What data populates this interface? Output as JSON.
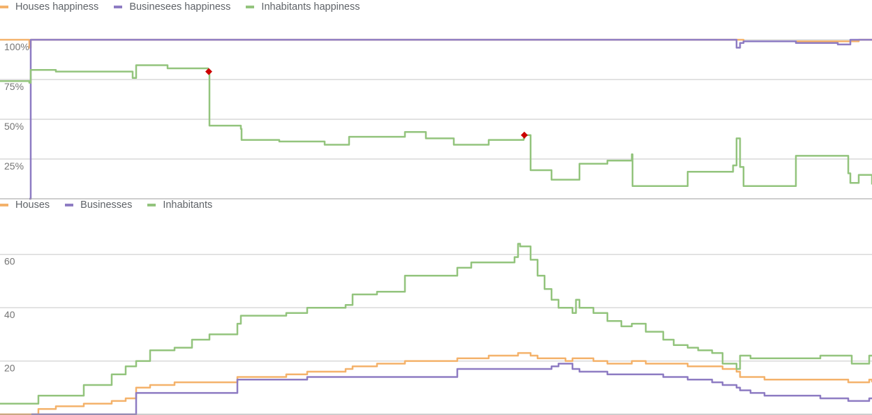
{
  "chart_data": [
    {
      "type": "line",
      "title": "",
      "xlabel": "",
      "ylabel": "",
      "ylim": [
        0,
        100
      ],
      "y_tick_labels": [
        "100%",
        "75%",
        "50%",
        "25%"
      ],
      "y_tick_values": [
        100,
        75,
        50,
        25
      ],
      "grid": true,
      "legend_position": "top-left",
      "x": [
        0,
        42,
        44,
        80,
        190,
        195,
        240,
        298,
        299,
        300,
        345,
        346,
        400,
        465,
        500,
        580,
        610,
        650,
        700,
        750,
        751,
        760,
        790,
        830,
        870,
        905,
        906,
        910,
        950,
        985,
        1050,
        1055,
        1060,
        1065,
        1100,
        1140,
        1200,
        1215,
        1218,
        1230,
        1245,
        1249
      ],
      "series": [
        {
          "name": "Houses happiness",
          "color": "#f4b26b",
          "values": [
            100,
            95,
            100,
            100,
            100,
            100,
            100,
            100,
            100,
            100,
            100,
            100,
            100,
            100,
            100,
            100,
            100,
            100,
            100,
            100,
            100,
            100,
            100,
            100,
            100,
            100,
            100,
            100,
            100,
            100,
            100,
            100,
            100,
            99,
            99,
            99,
            99,
            99,
            99,
            100,
            100,
            100
          ]
        },
        {
          "name": "Businesees happiness",
          "color": "#8e7cc3",
          "values": [
            null,
            0,
            100,
            100,
            100,
            100,
            100,
            100,
            100,
            100,
            100,
            100,
            100,
            100,
            100,
            100,
            100,
            100,
            100,
            100,
            100,
            100,
            100,
            100,
            100,
            100,
            100,
            100,
            100,
            100,
            100,
            95,
            98,
            99,
            99,
            98,
            97,
            97,
            100,
            100,
            100,
            100
          ]
        },
        {
          "name": "Inhabitants happiness",
          "color": "#93c47d",
          "values": [
            74,
            73,
            81,
            80,
            76,
            84,
            82,
            80,
            80,
            46,
            44,
            37,
            36,
            34,
            39,
            42,
            38,
            34,
            37,
            38,
            40,
            18,
            12,
            22,
            24,
            28,
            8,
            8,
            8,
            17,
            21,
            38,
            20,
            8,
            8,
            27,
            27,
            16,
            10,
            15,
            15,
            9
          ]
        }
      ],
      "markers": [
        {
          "x": 299,
          "y": 80,
          "color": "#cc0000"
        },
        {
          "x": 751,
          "y": 40,
          "color": "#cc0000"
        }
      ]
    },
    {
      "type": "line",
      "title": "",
      "xlabel": "",
      "ylabel": "",
      "ylim": [
        0,
        67
      ],
      "y_tick_labels": [
        "60",
        "40",
        "20"
      ],
      "y_tick_values": [
        60,
        40,
        20
      ],
      "grid": true,
      "legend_position": "top-left",
      "x": [
        0,
        45,
        55,
        80,
        120,
        160,
        180,
        195,
        215,
        250,
        275,
        300,
        340,
        345,
        380,
        410,
        440,
        495,
        505,
        540,
        578,
        580,
        610,
        655,
        675,
        700,
        737,
        742,
        745,
        760,
        770,
        780,
        790,
        800,
        810,
        820,
        825,
        830,
        850,
        870,
        890,
        905,
        925,
        950,
        965,
        985,
        1000,
        1020,
        1035,
        1055,
        1060,
        1075,
        1095,
        1140,
        1175,
        1215,
        1220,
        1245,
        1249
      ],
      "series": [
        {
          "name": "Houses",
          "color": "#f4b26b",
          "values": [
            0,
            0,
            2,
            3,
            4,
            5,
            6,
            10,
            11,
            12,
            12,
            12,
            14,
            14,
            14,
            15,
            16,
            17,
            18,
            19,
            19,
            20,
            20,
            21,
            21,
            22,
            22,
            23,
            23,
            22,
            21,
            21,
            21,
            21,
            20,
            21,
            21,
            21,
            20,
            19,
            19,
            20,
            19,
            19,
            19,
            18,
            18,
            18,
            17,
            16,
            14,
            14,
            13,
            13,
            13,
            12,
            12,
            13,
            12
          ]
        },
        {
          "name": "Businesses",
          "color": "#8e7cc3",
          "values": [
            null,
            0,
            0,
            0,
            0,
            0,
            0,
            8,
            8,
            8,
            8,
            8,
            13,
            13,
            13,
            13,
            14,
            14,
            14,
            14,
            14,
            14,
            14,
            17,
            17,
            17,
            17,
            17,
            17,
            17,
            17,
            17,
            18,
            19,
            19,
            17,
            17,
            16,
            16,
            15,
            15,
            15,
            15,
            14,
            14,
            13,
            13,
            12,
            11,
            10,
            9,
            8,
            7,
            7,
            6,
            5,
            5,
            6,
            6
          ]
        },
        {
          "name": "Inhabitants",
          "color": "#93c47d",
          "values": [
            4,
            4,
            7,
            7,
            11,
            15,
            18,
            20,
            24,
            25,
            28,
            30,
            34,
            37,
            37,
            38,
            40,
            41,
            45,
            46,
            46,
            52,
            52,
            55,
            57,
            57,
            59,
            64,
            63,
            58,
            52,
            47,
            43,
            40,
            40,
            38,
            43,
            40,
            38,
            35,
            33,
            34,
            31,
            28,
            26,
            25,
            24,
            23,
            19,
            17,
            22,
            21,
            21,
            21,
            22,
            22,
            19,
            22,
            22
          ]
        }
      ]
    }
  ]
}
